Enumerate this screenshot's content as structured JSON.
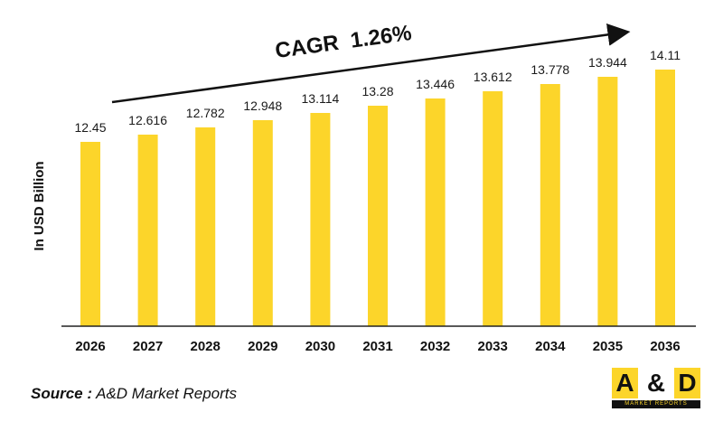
{
  "chart_data": {
    "type": "bar",
    "categories": [
      "2026",
      "2027",
      "2028",
      "2029",
      "2030",
      "2031",
      "2032",
      "2033",
      "2034",
      "2035",
      "2036"
    ],
    "values": [
      12.45,
      12.616,
      12.782,
      12.948,
      13.114,
      13.28,
      13.446,
      13.612,
      13.778,
      13.944,
      14.11
    ],
    "value_labels": [
      "12.45",
      "12.616",
      "12.782",
      "12.948",
      "13.114",
      "13.28",
      "13.446",
      "13.612",
      "13.778",
      "13.944",
      "14.11"
    ],
    "ylabel": "In USD Billion",
    "annotation": "CAGR  1.26%",
    "bar_color": "#fcd52a",
    "grid": false
  },
  "source": {
    "label": "Source :",
    "text": "A&D Market Reports"
  },
  "logo": {
    "left": "A",
    "amp": "&",
    "right": "D",
    "tagline": "MARKET REPORTS"
  }
}
